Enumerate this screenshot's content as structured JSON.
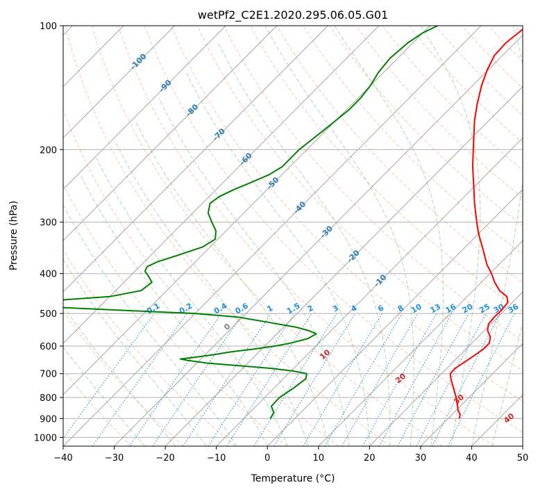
{
  "chart_data": {
    "type": "line",
    "title": "wetPf2_C2E1.2020.295.06.05.G01",
    "xlabel": "Temperature (°C)",
    "ylabel": "Pressure (hPa)",
    "xlim": [
      -40,
      50
    ],
    "ylim": [
      1050,
      100
    ],
    "y_scale": "log",
    "x_ticks": [
      "−40",
      "−30",
      "−20",
      "−10",
      "0",
      "10",
      "20",
      "30",
      "40",
      "50"
    ],
    "y_ticks": [
      "100",
      "200",
      "300",
      "400",
      "500",
      "600",
      "700",
      "800",
      "900",
      "1000"
    ],
    "grid": true,
    "series": [
      {
        "color": "#ff0000",
        "description": "temperature profile",
        "pressure": [
          900,
          880,
          860,
          830,
          800,
          760,
          720,
          700,
          680,
          640,
          610,
          590,
          570,
          550,
          530,
          510,
          490,
          470,
          455,
          440,
          420,
          400,
          380,
          350,
          320,
          300,
          270,
          240,
          220,
          200,
          185,
          170,
          155,
          140,
          128,
          118,
          110,
          104,
          100
        ],
        "temperature": [
          32.2,
          31.6,
          30.4,
          29.0,
          27.5,
          25.2,
          22.8,
          21.7,
          21.6,
          22.7,
          23.4,
          23.4,
          22.4,
          20.6,
          19.5,
          19.3,
          19.4,
          19.1,
          17.8,
          15.2,
          12.6,
          10.3,
          7.6,
          4.0,
          0.0,
          -2.6,
          -6.7,
          -11.0,
          -14.2,
          -17.4,
          -20.0,
          -22.8,
          -25.5,
          -28.2,
          -30.2,
          -31.6,
          -31.8,
          -31.3,
          -31.0
        ]
      },
      {
        "color": "#008000",
        "description": "dewpoint profile",
        "pressure": [
          900,
          870,
          840,
          800,
          760,
          720,
          700,
          690,
          680,
          670,
          660,
          650,
          645,
          640,
          630,
          620,
          610,
          600,
          590,
          575,
          560,
          550,
          540,
          525,
          510,
          500,
          490,
          480,
          470,
          465,
          455,
          440,
          420,
          405,
          395,
          385,
          375,
          360,
          345,
          330,
          315,
          300,
          285,
          270,
          260,
          250,
          240,
          230,
          220,
          210,
          200,
          190,
          180,
          170,
          160,
          150,
          140,
          130,
          120,
          110,
          104,
          100
        ],
        "dewpoint": [
          -4.8,
          -5.3,
          -7.0,
          -7.1,
          -6.2,
          -5.6,
          -6.4,
          -9.5,
          -14.2,
          -21.0,
          -28.0,
          -32.3,
          -34.0,
          -32.0,
          -28.5,
          -25.5,
          -21.5,
          -18.0,
          -15.5,
          -13.0,
          -12.3,
          -14.5,
          -17.5,
          -24.0,
          -31.0,
          -40.0,
          -57.0,
          -73.0,
          -80.0,
          -70.0,
          -60.0,
          -55.0,
          -54.5,
          -56.5,
          -58.0,
          -58.5,
          -57.5,
          -54.5,
          -51.5,
          -50.5,
          -52.0,
          -54.5,
          -57.0,
          -58.5,
          -58.0,
          -56.5,
          -54.5,
          -52.5,
          -51.5,
          -51.5,
          -51.5,
          -51.0,
          -50.5,
          -50.0,
          -49.5,
          -49.5,
          -50.0,
          -51.0,
          -51.5,
          -51.0,
          -50.0,
          -48.5
        ]
      }
    ],
    "reference_lines": {
      "isotherm_labels": [
        "-100",
        "-90",
        "-80",
        "-70",
        "-60",
        "-50",
        "-40",
        "-30",
        "-20",
        "-10"
      ],
      "isotherm_label_values": [
        -100,
        -90,
        -80,
        -70,
        -60,
        -50,
        -40,
        -30,
        -20,
        -10
      ],
      "mixing_ratio_labels": [
        "0.1",
        "0.2",
        "0.4",
        "0.6",
        "1",
        "1.5",
        "2",
        "3",
        "4",
        "6",
        "8",
        "10",
        "13",
        "16",
        "20",
        "25",
        "30",
        "36"
      ],
      "mixing_ratio_values": [
        0.1,
        0.2,
        0.4,
        0.6,
        1,
        1.5,
        2,
        3,
        4,
        6,
        8,
        10,
        13,
        16,
        20,
        25,
        30,
        36
      ],
      "moist_adiabat_labels": [
        "0",
        "10",
        "20",
        "30",
        "40"
      ],
      "moist_adiabat_values": [
        0,
        10,
        20,
        30,
        40
      ],
      "colors": {
        "isotherm": "#808080",
        "isobar": "#b0b0b0",
        "isotherm_label": "#2a7ab5",
        "mixing_ratio": "#1f8fe0",
        "dry_adiabat": "#ffa07a",
        "moist_adiabat": "#8fc98f",
        "moist_label_zero": "#808080",
        "moist_label": "#d62728",
        "frame": "#000000"
      }
    }
  }
}
